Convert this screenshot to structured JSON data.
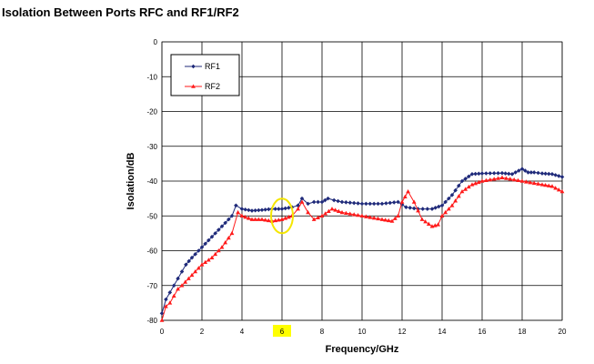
{
  "page": {
    "title": "Isolation Between Ports RFC and RF1/RF2"
  },
  "chart_data": {
    "type": "line",
    "title": "Isolation Between Ports RFC and RF1/RF2",
    "xlabel": "Frequency/GHz",
    "ylabel": "Isolation/dB",
    "xlim": [
      0,
      20
    ],
    "ylim": [
      -80,
      0
    ],
    "xticks": [
      "0",
      "2",
      "4",
      "6",
      "8",
      "10",
      "12",
      "14",
      "16",
      "18",
      "20"
    ],
    "yticks": [
      "0",
      "-10",
      "-20",
      "-30",
      "-40",
      "-50",
      "-60",
      "-70",
      "-80"
    ],
    "grid": true,
    "legend_position": "top-left",
    "highlighted_xtick": "6",
    "highlight_color": "#ffff00",
    "annotation": {
      "type": "ellipse",
      "x": 6,
      "y": -50,
      "color": "#f5e600"
    },
    "series": [
      {
        "name": "RF1",
        "color": "#1f2a7a",
        "marker": "diamond",
        "x": [
          0,
          0.2,
          0.4,
          0.6,
          0.8,
          1.0,
          1.2,
          1.5,
          2.0,
          2.5,
          3.0,
          3.5,
          3.7,
          4.0,
          4.5,
          5.0,
          5.5,
          6.0,
          6.5,
          6.8,
          7.0,
          7.3,
          7.6,
          8.0,
          8.3,
          8.6,
          9.0,
          10.0,
          11.0,
          11.8,
          12.2,
          12.8,
          13.5,
          14.0,
          14.5,
          15.0,
          15.5,
          16.0,
          17.0,
          17.5,
          18.0,
          18.3,
          18.6,
          19.0,
          19.5,
          20.0
        ],
        "values": [
          -78,
          -74,
          -72,
          -70,
          -68,
          -66,
          -64,
          -62,
          -59,
          -56,
          -53,
          -50,
          -47,
          -48,
          -48.5,
          -48.3,
          -48,
          -48,
          -47.5,
          -47,
          -45,
          -46.5,
          -46,
          -46,
          -45,
          -45.5,
          -46,
          -46.5,
          -46.5,
          -46,
          -47.5,
          -48,
          -48,
          -47,
          -44,
          -40,
          -38,
          -37.8,
          -37.7,
          -38,
          -36.5,
          -37.5,
          -37.5,
          -37.8,
          -38,
          -38.8
        ]
      },
      {
        "name": "RF2",
        "color": "#ff1a1a",
        "marker": "triangle",
        "x": [
          0,
          0.2,
          0.4,
          0.6,
          0.8,
          1.0,
          1.5,
          2.0,
          2.5,
          3.0,
          3.5,
          3.8,
          4.0,
          4.5,
          5.0,
          5.5,
          6.0,
          6.5,
          6.8,
          7.0,
          7.3,
          7.6,
          8.0,
          8.5,
          9.0,
          10.0,
          11.0,
          11.5,
          11.8,
          12.0,
          12.3,
          12.6,
          13.0,
          13.5,
          13.8,
          14.0,
          14.5,
          15.0,
          15.5,
          16.0,
          17.0,
          18.0,
          19.0,
          19.5,
          20.0
        ],
        "values": [
          -80,
          -76,
          -75,
          -73,
          -71,
          -70,
          -67,
          -64,
          -62,
          -59,
          -55,
          -49,
          -50,
          -51,
          -51,
          -51.5,
          -51,
          -50,
          -48,
          -46,
          -49,
          -51,
          -50,
          -48,
          -49,
          -50,
          -51,
          -51.5,
          -50,
          -46,
          -43,
          -46,
          -51,
          -53,
          -52.5,
          -50,
          -47,
          -43,
          -41,
          -40,
          -39,
          -40,
          -41,
          -41.5,
          -43
        ]
      }
    ]
  }
}
